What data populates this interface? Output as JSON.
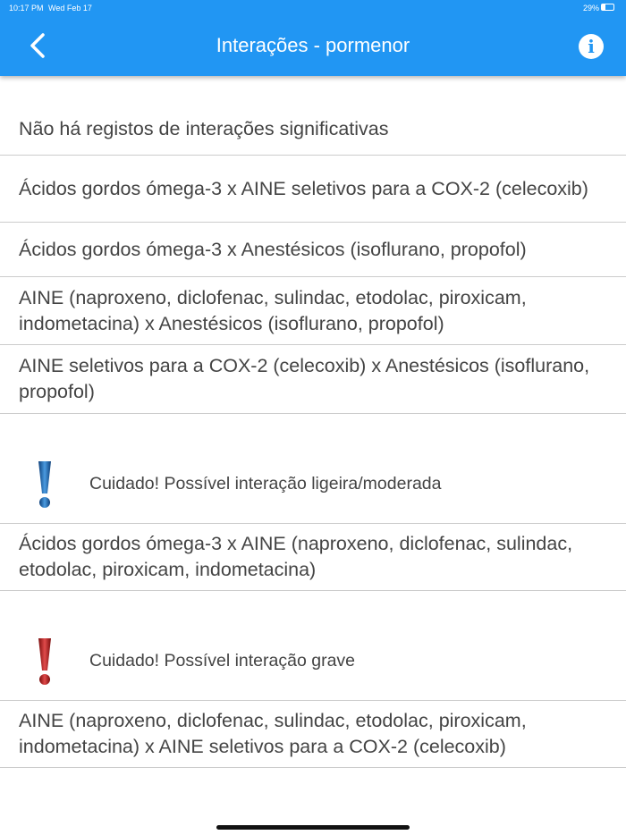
{
  "status_bar": {
    "time": "10:17 PM",
    "date": "Wed Feb 17",
    "battery": "29%"
  },
  "header": {
    "title": "Interações - pormenor",
    "info_label": "i"
  },
  "colors": {
    "header": "#2196F3",
    "moderate": "#1565C0",
    "severe": "#C62828"
  },
  "none_section": {
    "items": [
      "Não há registos de interações significativas",
      "Ácidos gordos ómega-3 x AINE seletivos para a COX-2 (celecoxib)",
      "Ácidos gordos ómega-3 x Anestésicos (isoflurano, propofol)",
      "AINE (naproxeno, diclofenac, sulindac, etodolac, piroxicam, indometacina) x Anestésicos (isoflurano, propofol)",
      "AINE seletivos para a COX-2 (celecoxib) x Anestésicos (isoflurano, propofol)"
    ]
  },
  "moderate_section": {
    "title": "Cuidado! Possível interação ligeira/moderada",
    "icon": "exclamation-blue",
    "items": [
      "Ácidos gordos ómega-3 x AINE (naproxeno, diclofenac, sulindac, etodolac, piroxicam, indometacina)"
    ]
  },
  "severe_section": {
    "title": "Cuidado! Possível interação grave",
    "icon": "exclamation-red",
    "items": [
      "AINE (naproxeno, diclofenac, sulindac, etodolac, piroxicam, indometacina) x AINE seletivos para a COX-2 (celecoxib)"
    ]
  }
}
